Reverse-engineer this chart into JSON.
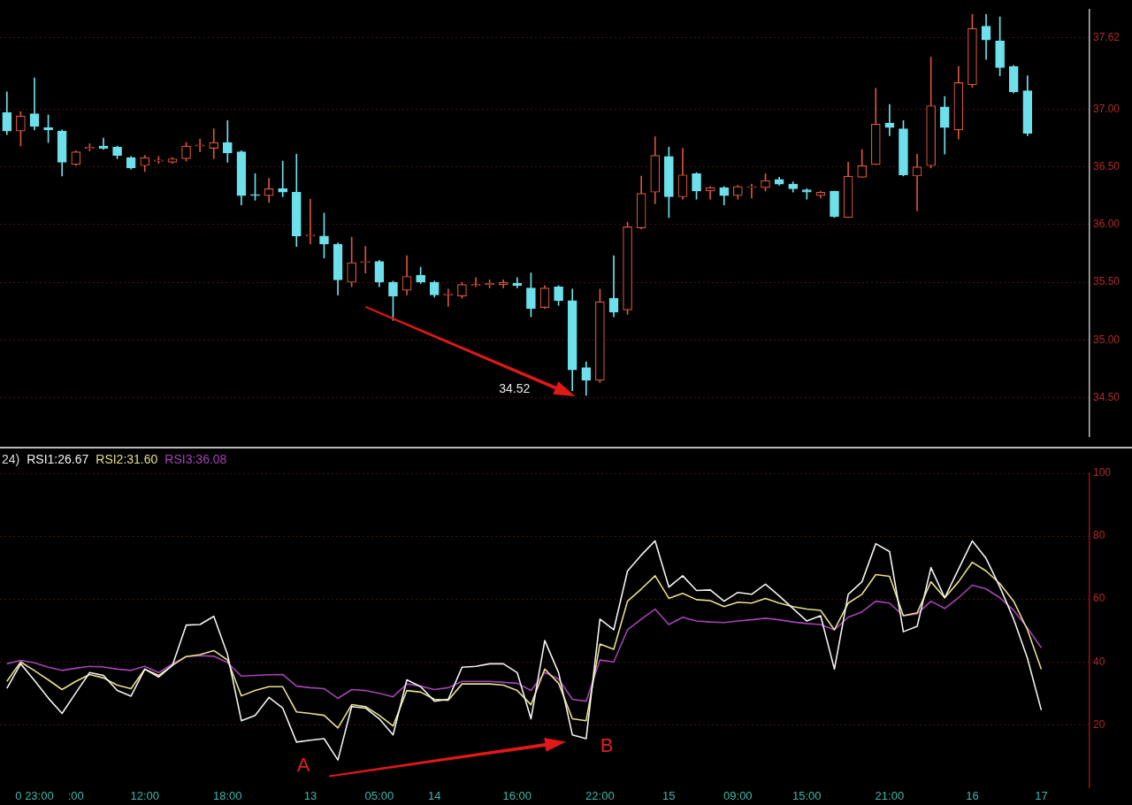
{
  "chart_data": [
    {
      "type": "candlestick",
      "categories": [
        null,
        null,
        null,
        null,
        null,
        null,
        null,
        null,
        null,
        null,
        null,
        null,
        null,
        null,
        null,
        null,
        null,
        null,
        null,
        null,
        null,
        null,
        null,
        null,
        null,
        null,
        null,
        null,
        null,
        null,
        null,
        null,
        null,
        null,
        null,
        null,
        null,
        null,
        null,
        null,
        null,
        null,
        null,
        null,
        null,
        null,
        null,
        null,
        null,
        null,
        null,
        null,
        null,
        null,
        null,
        null,
        null,
        null,
        null,
        null,
        null,
        null,
        null,
        null,
        null,
        null,
        null,
        null,
        null,
        null,
        null,
        null,
        null,
        null,
        null,
        null,
        null,
        null,
        null
      ],
      "ohlc": [
        [
          36.97,
          37.15,
          36.78,
          36.81
        ],
        [
          36.81,
          36.98,
          36.68,
          36.94
        ],
        [
          36.96,
          37.27,
          36.82,
          36.85
        ],
        [
          36.84,
          36.95,
          36.71,
          36.82
        ],
        [
          36.81,
          36.82,
          36.42,
          36.54
        ],
        [
          36.52,
          36.64,
          36.51,
          36.63
        ],
        [
          36.66,
          36.7,
          36.64,
          36.67
        ],
        [
          36.68,
          36.75,
          36.65,
          36.66
        ],
        [
          36.67,
          36.68,
          36.57,
          36.6
        ],
        [
          36.58,
          36.59,
          36.48,
          36.49
        ],
        [
          36.51,
          36.6,
          36.46,
          36.58
        ],
        [
          36.55,
          36.59,
          36.53,
          36.56
        ],
        [
          36.54,
          36.58,
          36.53,
          36.57
        ],
        [
          36.57,
          36.71,
          36.55,
          36.68
        ],
        [
          36.68,
          36.74,
          36.63,
          36.69
        ],
        [
          36.66,
          36.83,
          36.57,
          36.71
        ],
        [
          36.71,
          36.9,
          36.54,
          36.62
        ],
        [
          36.63,
          36.64,
          36.17,
          36.25
        ],
        [
          36.26,
          36.44,
          36.21,
          36.25
        ],
        [
          36.25,
          36.4,
          36.19,
          36.31
        ],
        [
          36.31,
          36.55,
          36.24,
          36.28
        ],
        [
          36.28,
          36.61,
          35.81,
          35.9
        ],
        [
          35.9,
          36.22,
          35.83,
          35.91
        ],
        [
          35.9,
          36.1,
          35.71,
          35.83
        ],
        [
          35.83,
          35.84,
          35.39,
          35.52
        ],
        [
          35.5,
          35.89,
          35.46,
          35.67
        ],
        [
          35.67,
          35.81,
          35.58,
          35.68
        ],
        [
          35.68,
          35.69,
          35.46,
          35.5
        ],
        [
          35.5,
          35.51,
          35.17,
          35.38
        ],
        [
          35.43,
          35.73,
          35.39,
          35.55
        ],
        [
          35.56,
          35.63,
          35.49,
          35.5
        ],
        [
          35.5,
          35.51,
          35.37,
          35.39
        ],
        [
          35.39,
          35.44,
          35.29,
          35.4
        ],
        [
          35.38,
          35.5,
          35.36,
          35.48
        ],
        [
          35.47,
          35.54,
          35.46,
          35.48
        ],
        [
          35.48,
          35.52,
          35.45,
          35.49
        ],
        [
          35.48,
          35.52,
          35.45,
          35.5
        ],
        [
          35.49,
          35.54,
          35.45,
          35.47
        ],
        [
          35.45,
          35.58,
          35.2,
          35.27
        ],
        [
          35.28,
          35.47,
          35.27,
          35.45
        ],
        [
          35.46,
          35.47,
          35.3,
          35.34
        ],
        [
          35.34,
          35.44,
          34.56,
          34.74
        ],
        [
          34.76,
          34.81,
          34.52,
          34.65
        ],
        [
          34.65,
          35.44,
          34.63,
          35.33
        ],
        [
          35.36,
          35.73,
          35.2,
          35.24
        ],
        [
          35.26,
          36.02,
          35.22,
          35.98
        ],
        [
          35.97,
          36.42,
          35.96,
          36.27
        ],
        [
          36.28,
          36.76,
          36.18,
          36.6
        ],
        [
          36.59,
          36.67,
          36.06,
          36.24
        ],
        [
          36.24,
          36.66,
          36.22,
          36.43
        ],
        [
          36.44,
          36.45,
          36.22,
          36.29
        ],
        [
          36.29,
          36.33,
          36.22,
          36.32
        ],
        [
          36.32,
          36.33,
          36.17,
          36.25
        ],
        [
          36.25,
          36.34,
          36.22,
          36.33
        ],
        [
          36.32,
          36.35,
          36.23,
          36.33
        ],
        [
          36.32,
          36.44,
          36.29,
          36.38
        ],
        [
          36.39,
          36.41,
          36.34,
          36.35
        ],
        [
          36.35,
          36.37,
          36.28,
          36.31
        ],
        [
          36.3,
          36.31,
          36.22,
          36.28
        ],
        [
          36.25,
          36.29,
          36.23,
          36.28
        ],
        [
          36.29,
          36.29,
          36.06,
          36.07
        ],
        [
          36.06,
          36.54,
          36.06,
          36.42
        ],
        [
          36.41,
          36.65,
          36.41,
          36.51
        ],
        [
          36.52,
          37.18,
          36.52,
          36.87
        ],
        [
          36.88,
          37.04,
          36.77,
          36.84
        ],
        [
          36.83,
          36.9,
          36.42,
          36.43
        ],
        [
          36.42,
          36.61,
          36.12,
          36.5
        ],
        [
          36.51,
          37.45,
          36.49,
          37.03
        ],
        [
          37.02,
          37.11,
          36.61,
          36.84
        ],
        [
          36.82,
          37.37,
          36.74,
          37.23
        ],
        [
          37.21,
          37.82,
          37.19,
          37.7
        ],
        [
          37.72,
          37.82,
          37.43,
          37.6
        ],
        [
          37.59,
          37.8,
          37.29,
          37.36
        ],
        [
          37.37,
          37.38,
          37.14,
          37.15
        ],
        [
          37.16,
          37.29,
          36.77,
          36.79
        ],
        null,
        null,
        null,
        null
      ],
      "colors": [
        "#6ee0ec",
        "#d9553b",
        "#6ee0ec",
        "#6ee0ec",
        "#6ee0ec",
        "#d9553b",
        "#d9553b",
        "#6ee0ec",
        "#6ee0ec",
        "#6ee0ec",
        "#d9553b",
        "#d9553b",
        "#d9553b",
        "#d9553b",
        "#d9553b",
        "#d9553b",
        "#6ee0ec",
        "#6ee0ec",
        "#6ee0ec",
        "#d9553b",
        "#6ee0ec",
        "#6ee0ec",
        "#d9553b",
        "#6ee0ec",
        "#6ee0ec",
        "#d9553b",
        "#d9553b",
        "#6ee0ec",
        "#6ee0ec",
        "#d9553b",
        "#6ee0ec",
        "#6ee0ec",
        "#d9553b",
        "#d9553b",
        "#d9553b",
        "#d9553b",
        "#d9553b",
        "#6ee0ec",
        "#6ee0ec",
        "#d9553b",
        "#6ee0ec",
        "#6ee0ec",
        "#6ee0ec",
        "#d9553b",
        "#6ee0ec",
        "#d9553b",
        "#d9553b",
        "#d9553b",
        "#6ee0ec",
        "#d9553b",
        "#6ee0ec",
        "#d9553b",
        "#6ee0ec",
        "#d9553b",
        "#d9553b",
        "#d9553b",
        "#6ee0ec",
        "#6ee0ec",
        "#6ee0ec",
        "#d9553b",
        "#6ee0ec",
        "#d9553b",
        "#d9553b",
        "#d9553b",
        "#6ee0ec",
        "#6ee0ec",
        "#d9553b",
        "#d9553b",
        "#6ee0ec",
        "#d9553b",
        "#d9553b",
        "#6ee0ec",
        "#6ee0ec",
        "#6ee0ec",
        "#6ee0ec",
        null,
        null,
        null,
        null
      ],
      "ylim": [
        34.16,
        37.86
      ],
      "yticks": [
        {
          "value": 34.5,
          "label": "34.50"
        },
        {
          "value": 35,
          "label": "35.00"
        },
        {
          "value": 35.5,
          "label": "35.50"
        },
        {
          "value": 36,
          "label": "36.00"
        },
        {
          "value": 36.5,
          "label": "36.50"
        },
        {
          "value": 37,
          "label": "37.00"
        },
        37.62
      ],
      "grid": "y",
      "tick_labels": "y",
      "annotations": [
        "34.52"
      ]
    },
    {
      "type": "line",
      "categories": [
        null,
        null,
        "0 23:00",
        null,
        null,
        ":00",
        null,
        null,
        null,
        null,
        "12:00",
        null,
        null,
        null,
        null,
        null,
        "18:00",
        null,
        null,
        null,
        null,
        null,
        "13",
        null,
        null,
        null,
        null,
        "05:00",
        null,
        null,
        null,
        "14",
        null,
        null,
        null,
        null,
        null,
        "16:00",
        null,
        null,
        null,
        null,
        null,
        "22:00",
        null,
        null,
        null,
        null,
        "15",
        null,
        null,
        null,
        null,
        "09:00",
        null,
        null,
        null,
        null,
        "15:00",
        null,
        null,
        null,
        null,
        null,
        "21:00",
        null,
        null,
        null,
        null,
        null,
        "16",
        null,
        null,
        null,
        null,
        "17",
        null,
        null,
        null
      ],
      "series": [
        {
          "name": "RSI1:26.67",
          "color": "#f2f2f2",
          "values": [
            31.6,
            39.4,
            34.1,
            28.5,
            23.6,
            30.2,
            36.6,
            35.7,
            30.9,
            29.1,
            37.7,
            35.2,
            38.9,
            51.7,
            51.9,
            54.5,
            42.3,
            21.3,
            23.0,
            28.7,
            25.3,
            14.5,
            15.1,
            15.6,
            8.8,
            25.8,
            25.3,
            21.9,
            16.8,
            34.3,
            32.1,
            27.5,
            28.1,
            38.3,
            38.6,
            39.4,
            39.4,
            36.6,
            21.9,
            46.8,
            36.6,
            16.8,
            15.6,
            53.6,
            50.2,
            68.9,
            74.0,
            78.5,
            63.8,
            67.4,
            62.7,
            62.9,
            59.3,
            62.1,
            61.5,
            64.7,
            61.0,
            57.0,
            53.0,
            54.7,
            37.7,
            61.5,
            65.5,
            77.6,
            75.1,
            49.6,
            51.3,
            70.0,
            60.4,
            69.5,
            78.5,
            72.9,
            63.8,
            53.6,
            41.1,
            24.7,
            null,
            null,
            null
          ]
        },
        {
          "name": "RSI2:31.60",
          "color": "#e6df8c",
          "values": [
            33.8,
            40.0,
            37.2,
            34.3,
            31.2,
            33.8,
            36.0,
            34.9,
            32.6,
            31.5,
            37.7,
            35.7,
            38.9,
            41.7,
            42.3,
            43.6,
            40.6,
            29.2,
            30.9,
            32.1,
            32.1,
            24.1,
            23.6,
            23.0,
            19.0,
            26.4,
            25.8,
            23.0,
            19.6,
            30.9,
            30.4,
            28.1,
            27.8,
            33.0,
            33.0,
            33.0,
            32.6,
            30.9,
            26.4,
            37.7,
            33.2,
            21.9,
            21.3,
            45.7,
            44.0,
            59.3,
            63.2,
            67.4,
            60.2,
            61.8,
            59.8,
            59.5,
            57.6,
            59.0,
            58.7,
            60.2,
            58.7,
            57.6,
            56.8,
            56.4,
            50.2,
            58.7,
            61.5,
            67.8,
            67.2,
            54.7,
            55.6,
            65.5,
            60.4,
            65.5,
            71.7,
            68.9,
            64.9,
            59.3,
            50.2,
            37.7,
            null,
            null,
            null
          ]
        },
        {
          "name": "RSI3:36.08",
          "color": "#a443b4",
          "values": [
            39.4,
            40.5,
            39.7,
            38.3,
            37.3,
            38.0,
            38.6,
            38.4,
            37.7,
            37.3,
            38.6,
            36.6,
            39.4,
            41.7,
            42.0,
            41.8,
            39.8,
            35.5,
            35.7,
            35.9,
            36.0,
            32.3,
            31.8,
            31.5,
            28.4,
            31.2,
            30.9,
            30.0,
            28.9,
            33.0,
            32.3,
            31.2,
            31.8,
            33.8,
            33.8,
            33.8,
            33.5,
            33.2,
            30.9,
            36.6,
            34.6,
            28.1,
            27.5,
            40.6,
            40.0,
            50.2,
            53.6,
            56.8,
            51.9,
            54.2,
            53.0,
            52.7,
            52.5,
            53.0,
            53.4,
            53.9,
            53.4,
            52.7,
            52.2,
            51.9,
            50.2,
            54.2,
            55.9,
            59.3,
            58.7,
            54.7,
            55.3,
            59.3,
            57.0,
            60.4,
            64.4,
            63.2,
            60.4,
            56.4,
            50.8,
            44.5,
            null,
            null,
            null
          ]
        }
      ],
      "legend_title": "24)",
      "legend": "top left",
      "ylim": [
        0,
        100
      ],
      "yticks": [
        20,
        40,
        60,
        80,
        100
      ],
      "grid": "y",
      "annotations": [
        "A",
        "B"
      ]
    }
  ]
}
